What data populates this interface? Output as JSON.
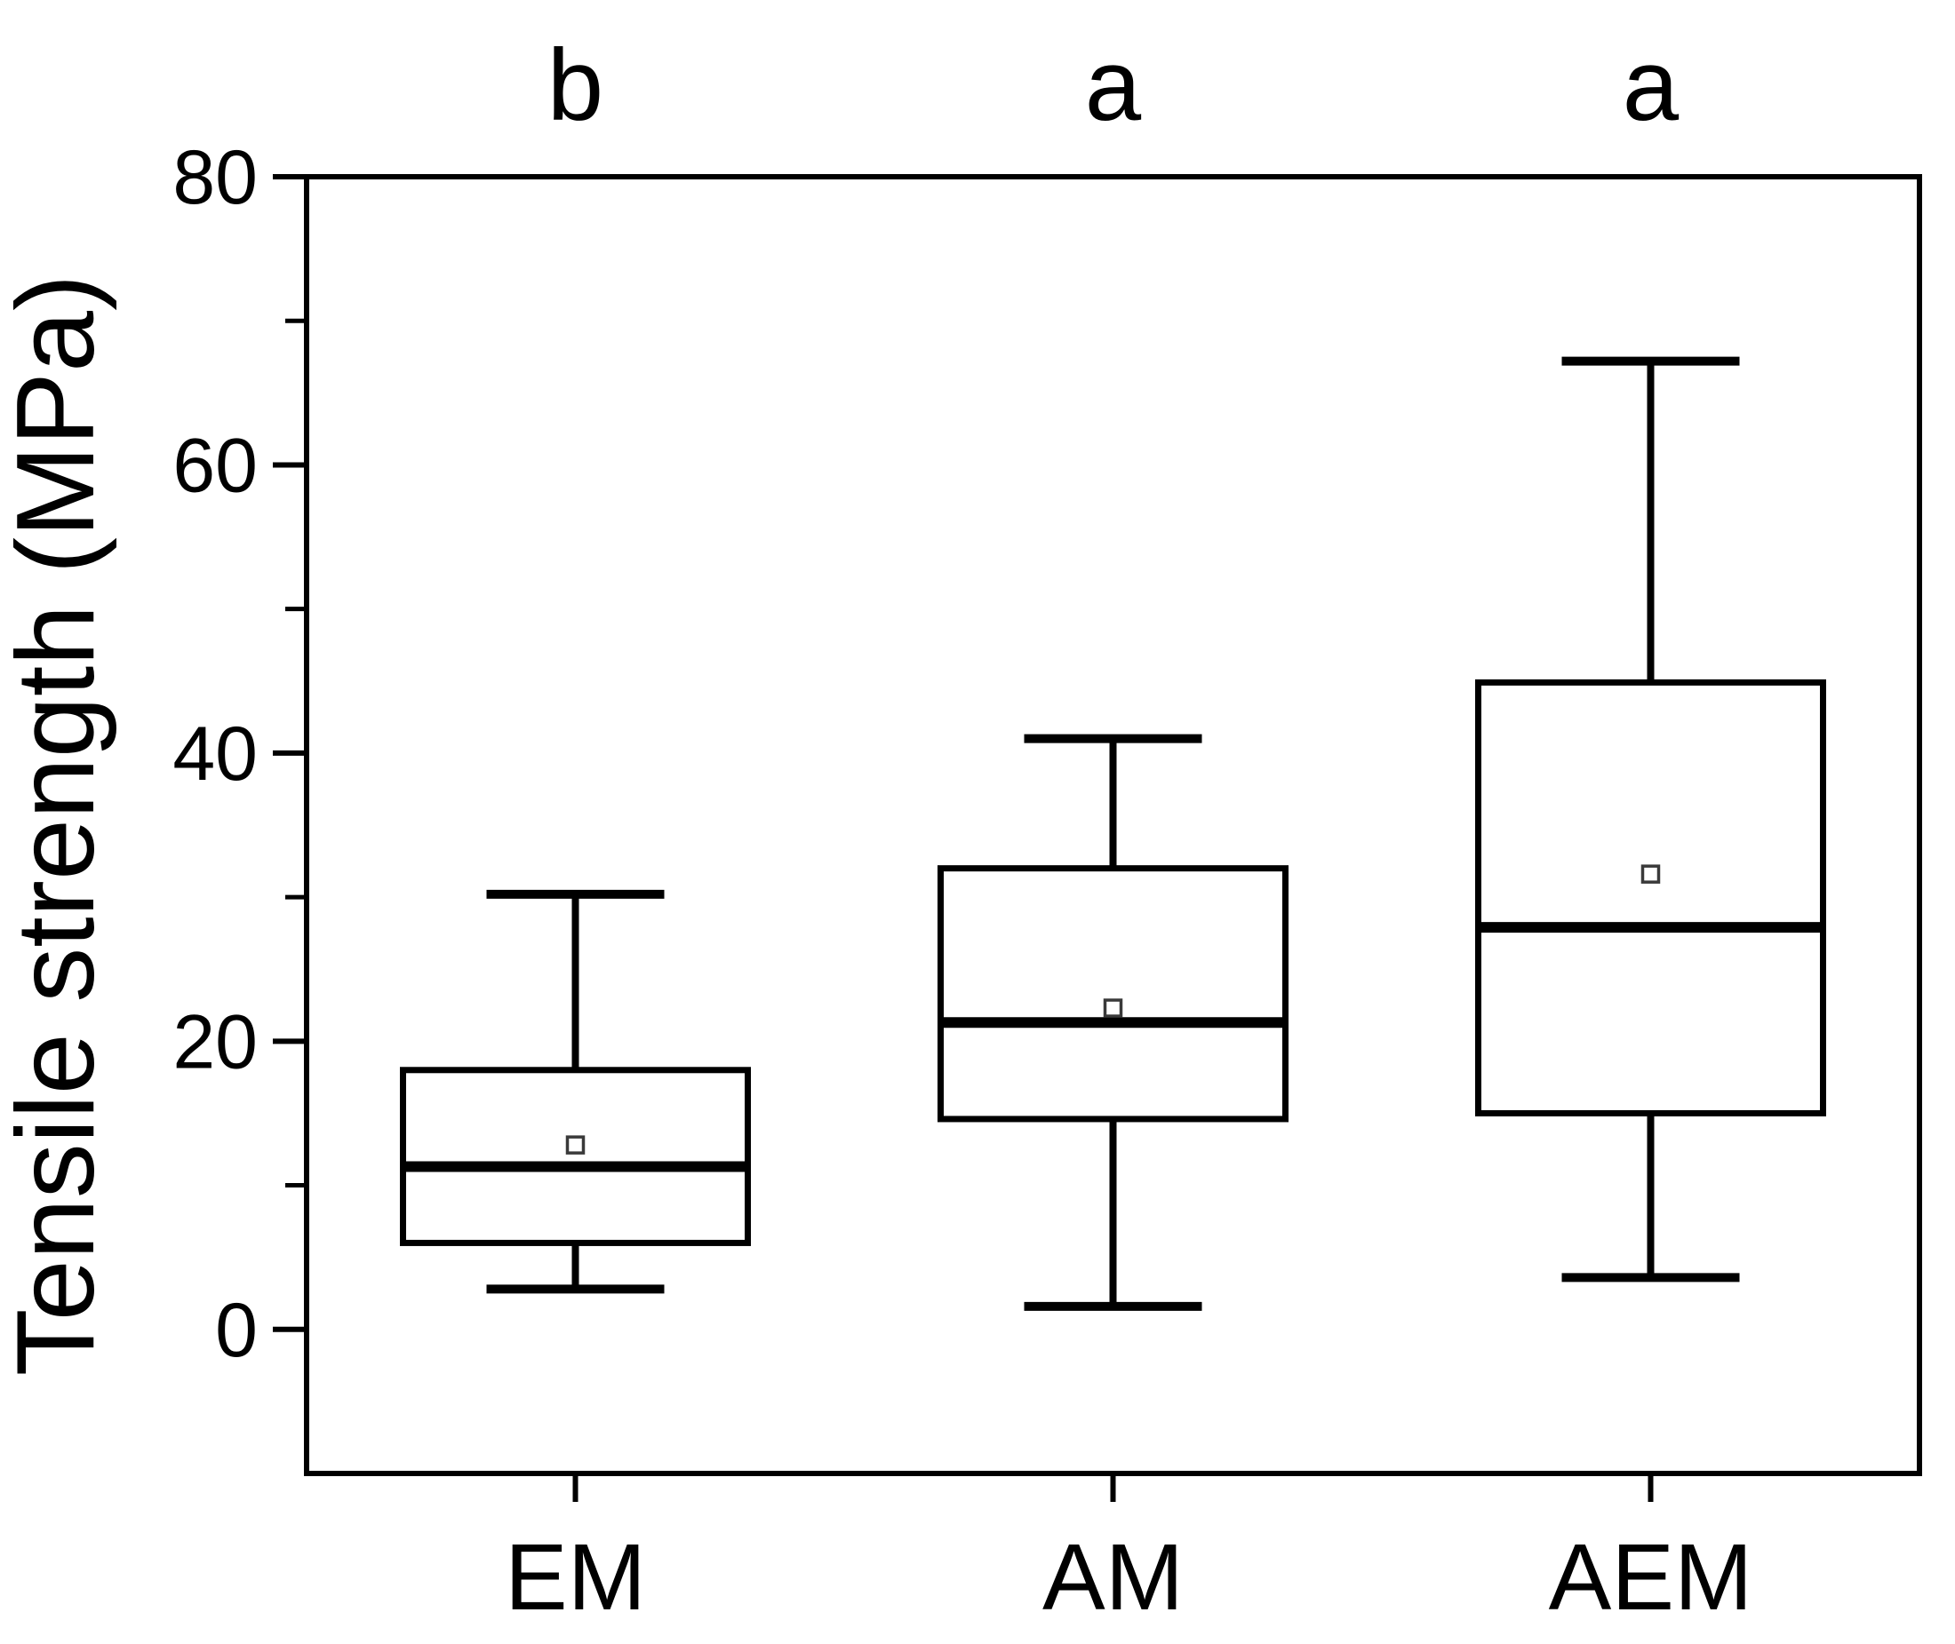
{
  "chart_data": {
    "type": "boxplot",
    "title": "",
    "xlabel": "",
    "ylabel": "Tensile strength (MPa)",
    "ylim": [
      -10,
      80
    ],
    "y_major_ticks": [
      0,
      20,
      40,
      60,
      80
    ],
    "y_minor_ticks": [
      10,
      30,
      50,
      70
    ],
    "grid": false,
    "legend": false,
    "categories": [
      "EM",
      "AM",
      "AEM"
    ],
    "significance_letters": [
      "b",
      "a",
      "a"
    ],
    "series": [
      {
        "name": "EM",
        "letter": "b",
        "whisker_low": 2.8,
        "q1": 6.0,
        "median": 11.3,
        "mean": 12.8,
        "q3": 18.0,
        "whisker_high": 30.2
      },
      {
        "name": "AM",
        "letter": "a",
        "whisker_low": 1.6,
        "q1": 14.6,
        "median": 21.3,
        "mean": 22.3,
        "q3": 32.0,
        "whisker_high": 41.0
      },
      {
        "name": "AEM",
        "letter": "a",
        "whisker_low": 3.6,
        "q1": 15.0,
        "median": 27.9,
        "mean": 31.6,
        "q3": 44.9,
        "whisker_high": 67.2
      }
    ],
    "colors": {
      "line": "#000000",
      "box_fill": "#ffffff",
      "mean_marker_stroke": "#3a3a3a",
      "background": "#ffffff"
    }
  }
}
